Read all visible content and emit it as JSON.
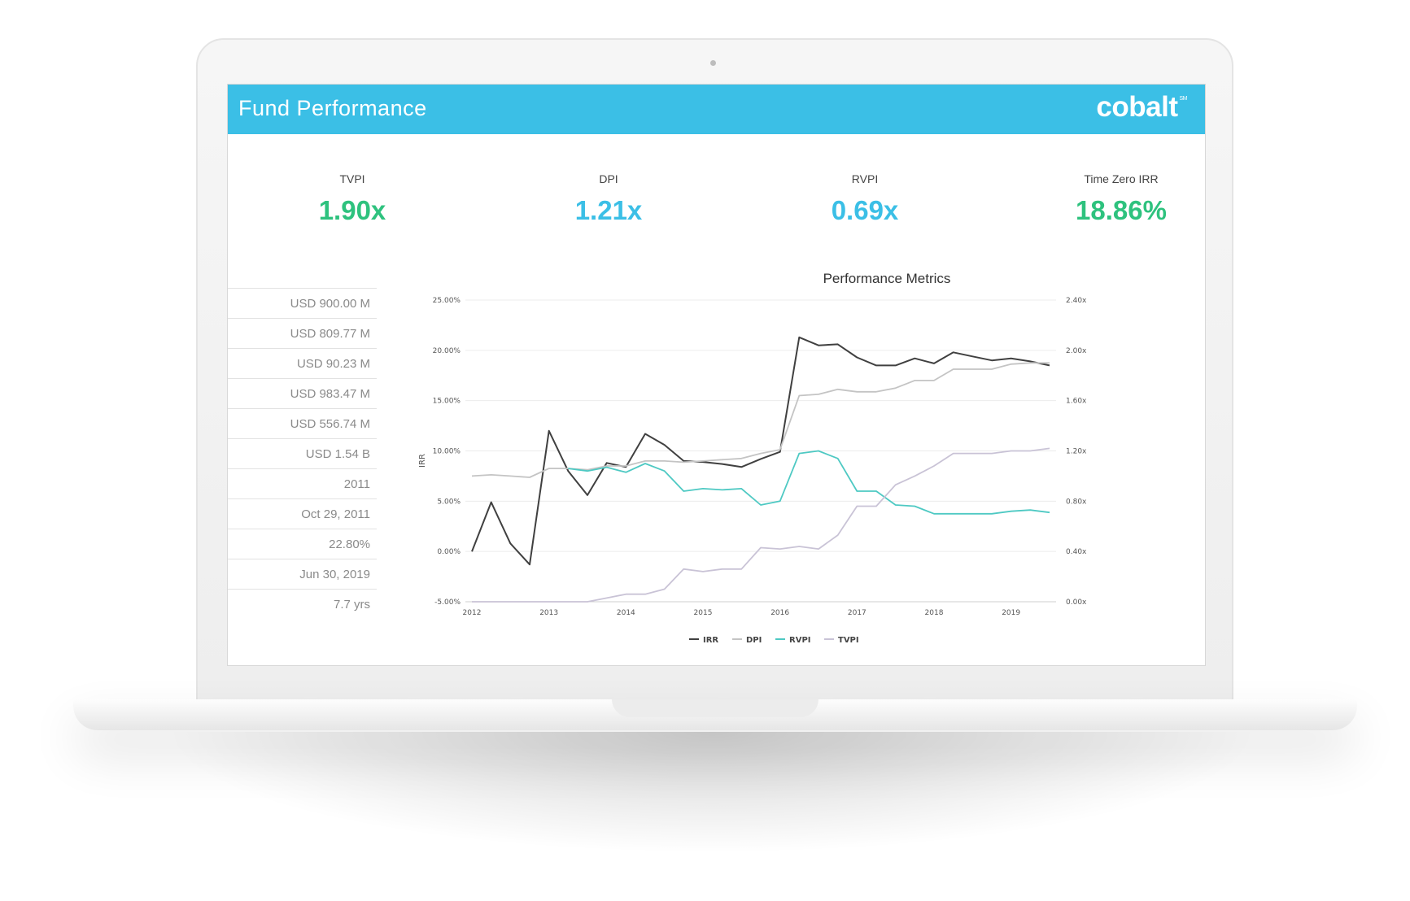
{
  "header": {
    "title": "Fund Performance",
    "brand": "cobalt",
    "brand_mark": "SM"
  },
  "kpis": [
    {
      "label": "TVPI",
      "value": "1.90x",
      "color": "#2ec27e"
    },
    {
      "label": "DPI",
      "value": "1.21x",
      "color": "#3bbfe6"
    },
    {
      "label": "RVPI",
      "value": "0.69x",
      "color": "#3bbfe6"
    },
    {
      "label": "Time Zero IRR",
      "value": "18.86%",
      "color": "#2ec27e"
    }
  ],
  "stats": [
    "USD 900.00 M",
    "USD 809.77 M",
    "USD 90.23 M",
    "USD 983.47 M",
    "USD 556.74 M",
    "USD 1.54 B",
    "2011",
    "Oct 29, 2011",
    "22.80%",
    "Jun 30, 2019",
    "7.7 yrs"
  ],
  "chart_data": {
    "type": "line",
    "title": "Performance Metrics",
    "ylabel": "IRR",
    "ylim": [
      -5,
      25
    ],
    "y2lim": [
      0,
      2.4
    ],
    "yticks": [
      "25.00%",
      "20.00%",
      "15.00%",
      "10.00%",
      "5.00%",
      "0.00%",
      "-5.00%"
    ],
    "y2ticks": [
      "2.40x",
      "2.00x",
      "1.60x",
      "1.20x",
      "0.80x",
      "0.40x",
      "0.00x"
    ],
    "xlim": [
      2012,
      2019.5
    ],
    "xticks": [
      "2012",
      "2013",
      "2014",
      "2015",
      "2016",
      "2017",
      "2018",
      "2019"
    ],
    "legend_position": "bottom-center",
    "series": [
      {
        "name": "IRR",
        "axis": "left",
        "color": "#404040",
        "x": [
          2012,
          2012.25,
          2012.5,
          2012.75,
          2013,
          2013.25,
          2013.5,
          2013.75,
          2014,
          2014.25,
          2014.5,
          2014.75,
          2015,
          2015.25,
          2015.5,
          2015.75,
          2016,
          2016.25,
          2016.5,
          2016.75,
          2017,
          2017.25,
          2017.5,
          2017.75,
          2018,
          2018.25,
          2018.5,
          2018.75,
          2019,
          2019.25,
          2019.5
        ],
        "values": [
          0,
          4.9,
          0.8,
          -1.3,
          12,
          8,
          5.6,
          8.8,
          8.4,
          11.7,
          10.6,
          9,
          8.9,
          8.7,
          8.4,
          9.2,
          9.9,
          21.3,
          20.5,
          20.6,
          19.3,
          18.5,
          18.5,
          19.2,
          18.7,
          19.8,
          19.4,
          19,
          19.2,
          18.9,
          18.5
        ]
      },
      {
        "name": "DPI",
        "axis": "right",
        "color": "#c4c4c4",
        "x": [
          2012,
          2012.25,
          2012.5,
          2012.75,
          2013,
          2013.25,
          2013.5,
          2013.75,
          2014,
          2014.25,
          2014.5,
          2014.75,
          2015,
          2015.25,
          2015.5,
          2015.75,
          2016,
          2016.25,
          2016.5,
          2016.75,
          2017,
          2017.25,
          2017.5,
          2017.75,
          2018,
          2018.25,
          2018.5,
          2018.75,
          2019,
          2019.25,
          2019.5
        ],
        "values": [
          1,
          1.01,
          1,
          0.99,
          1.06,
          1.06,
          1.05,
          1.08,
          1.08,
          1.12,
          1.12,
          1.11,
          1.12,
          1.13,
          1.14,
          1.18,
          1.21,
          1.64,
          1.65,
          1.69,
          1.67,
          1.67,
          1.7,
          1.76,
          1.76,
          1.85,
          1.85,
          1.85,
          1.89,
          1.9,
          1.9
        ]
      },
      {
        "name": "RVPI",
        "axis": "right",
        "color": "#4ec9c3",
        "x": [
          2013.25,
          2013.5,
          2013.75,
          2014,
          2014.25,
          2014.5,
          2014.75,
          2015,
          2015.25,
          2015.5,
          2015.75,
          2016,
          2016.25,
          2016.5,
          2016.75,
          2017,
          2017.25,
          2017.5,
          2017.75,
          2018,
          2018.25,
          2018.5,
          2018.75,
          2019,
          2019.25,
          2019.5
        ],
        "values": [
          1.06,
          1.04,
          1.07,
          1.03,
          1.1,
          1.04,
          0.88,
          0.9,
          0.89,
          0.9,
          0.77,
          0.8,
          1.18,
          1.2,
          1.14,
          0.88,
          0.88,
          0.77,
          0.76,
          0.7,
          0.7,
          0.7,
          0.7,
          0.72,
          0.73,
          0.71
        ]
      },
      {
        "name": "TVPI",
        "axis": "right",
        "color": "#c9c3d6",
        "x": [
          2012,
          2012.25,
          2012.5,
          2012.75,
          2013,
          2013.25,
          2013.5,
          2013.75,
          2014,
          2014.25,
          2014.5,
          2014.75,
          2015,
          2015.25,
          2015.5,
          2015.75,
          2016,
          2016.25,
          2016.5,
          2016.75,
          2017,
          2017.25,
          2017.5,
          2017.75,
          2018,
          2018.25,
          2018.5,
          2018.75,
          2019,
          2019.25,
          2019.5
        ],
        "values": [
          0,
          0,
          0,
          0,
          0,
          0,
          0,
          0.03,
          0.06,
          0.06,
          0.1,
          0.26,
          0.24,
          0.26,
          0.26,
          0.43,
          0.42,
          0.44,
          0.42,
          0.53,
          0.76,
          0.76,
          0.93,
          1,
          1.08,
          1.18,
          1.18,
          1.18,
          1.2,
          1.2,
          1.22
        ]
      }
    ]
  }
}
